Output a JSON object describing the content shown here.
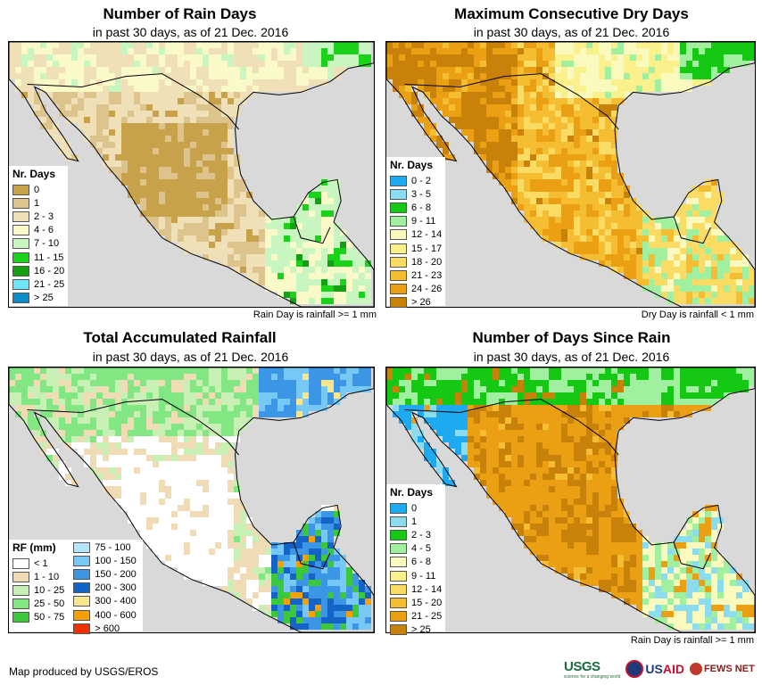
{
  "panels": [
    {
      "title": "Number of Rain Days",
      "subtitle": "in past 30 days, as of 21 Dec. 2016",
      "note": "Rain Day is rainfall >= 1 mm",
      "legend_title": "Nr. Days",
      "legend": [
        {
          "label": "0",
          "color": "#c8a24a"
        },
        {
          "label": "1",
          "color": "#dcc48c"
        },
        {
          "label": "2 - 3",
          "color": "#f0e0b8"
        },
        {
          "label": "4 - 6",
          "color": "#fafac8"
        },
        {
          "label": "7 - 10",
          "color": "#c8f5c0"
        },
        {
          "label": "11 - 15",
          "color": "#19d219"
        },
        {
          "label": "16 - 20",
          "color": "#14a014"
        },
        {
          "label": "21 - 25",
          "color": "#6ee6f5"
        },
        {
          "label": "> 25",
          "color": "#0a8cc8"
        }
      ]
    },
    {
      "title": "Maximum Consecutive Dry Days",
      "subtitle": "in past 30 days, as of 21 Dec. 2016",
      "note": "Dry Day is rainfall < 1 mm",
      "legend_title": "Nr. Days",
      "legend": [
        {
          "label": "0 - 2",
          "color": "#1eaaf0"
        },
        {
          "label": "3 - 5",
          "color": "#8cdcf0"
        },
        {
          "label": "6 - 8",
          "color": "#14c814"
        },
        {
          "label": "9 - 11",
          "color": "#a0f0a0"
        },
        {
          "label": "12 - 14",
          "color": "#fafabe"
        },
        {
          "label": "15 - 17",
          "color": "#faf08c"
        },
        {
          "label": "18 - 20",
          "color": "#fadc64"
        },
        {
          "label": "21 - 23",
          "color": "#f5be32"
        },
        {
          "label": "24 - 26",
          "color": "#eba014"
        },
        {
          "label": "> 26",
          "color": "#c8820a"
        }
      ]
    },
    {
      "title": "Total Accumulated Rainfall",
      "subtitle": "in past 30 days, as of 21 Dec. 2016",
      "note": "",
      "legend_title": "RF (mm)",
      "legend": [
        {
          "label": "< 1",
          "color": "#ffffff"
        },
        {
          "label": "1 - 10",
          "color": "#f0dcb4"
        },
        {
          "label": "10 - 25",
          "color": "#c8f0b4"
        },
        {
          "label": "25 - 50",
          "color": "#82e682"
        },
        {
          "label": "50 - 75",
          "color": "#3cc83c"
        },
        {
          "label": "75 - 100",
          "color": "#b4e6fa"
        },
        {
          "label": "100 - 150",
          "color": "#78c8f5"
        },
        {
          "label": "150 - 200",
          "color": "#3c96e6"
        },
        {
          "label": "200 - 300",
          "color": "#1464c8"
        },
        {
          "label": "300 - 400",
          "color": "#fae68c"
        },
        {
          "label": "400 - 600",
          "color": "#f5a000"
        },
        {
          "label": "> 600",
          "color": "#f03200"
        }
      ]
    },
    {
      "title": "Number of Days Since Rain",
      "subtitle": "in past 30 days, as of 21 Dec. 2016",
      "note": "Rain Day is rainfall >= 1 mm",
      "legend_title": "Nr. Days",
      "legend": [
        {
          "label": "0",
          "color": "#1eaaf0"
        },
        {
          "label": "1",
          "color": "#8cdcf0"
        },
        {
          "label": "2 - 3",
          "color": "#14c814"
        },
        {
          "label": "4 - 5",
          "color": "#a0f0a0"
        },
        {
          "label": "6 - 8",
          "color": "#fafabe"
        },
        {
          "label": "9 - 11",
          "color": "#faf08c"
        },
        {
          "label": "12 - 14",
          "color": "#fadc64"
        },
        {
          "label": "15 - 20",
          "color": "#f5be32"
        },
        {
          "label": "21 - 25",
          "color": "#eba014"
        },
        {
          "label": "> 25",
          "color": "#c8820a"
        }
      ]
    }
  ],
  "footer": {
    "credit": "Map produced by USGS/EROS",
    "logos": {
      "usgs": "USGS",
      "usgs_tagline": "science for a changing world",
      "usaid_prefix": "US",
      "usaid_suffix": "AID",
      "fews": "FEWS NET"
    }
  },
  "colors": {
    "ocean": "#d9d9d9",
    "border": "#000000"
  }
}
